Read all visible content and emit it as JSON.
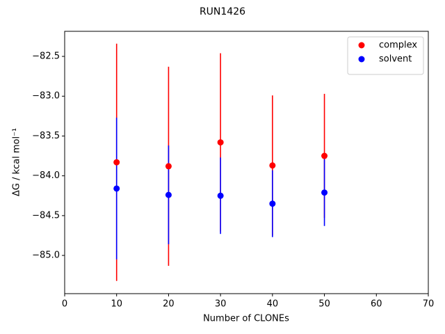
{
  "chart_data": {
    "type": "errorbar",
    "title": "RUN1426",
    "xlabel": "Number of CLONEs",
    "ylabel": "ΔG / kcal mol⁻¹",
    "xlim": [
      0,
      70
    ],
    "xticks": [
      0,
      10,
      20,
      30,
      40,
      50,
      60,
      70
    ],
    "ylim": [
      -85.48,
      -82.185
    ],
    "yticks": [
      {
        "value": -85.0,
        "label": "−85.0"
      },
      {
        "value": -84.5,
        "label": "−84.5"
      },
      {
        "value": -84.0,
        "label": "−84.0"
      },
      {
        "value": -83.5,
        "label": "−83.5"
      },
      {
        "value": -83.0,
        "label": "−83.0"
      },
      {
        "value": -82.5,
        "label": "−82.5"
      }
    ],
    "legend": "upper right",
    "series": [
      {
        "name": "complex",
        "color": "#ff0000",
        "x": [
          10,
          20,
          30,
          40,
          50
        ],
        "values": [
          -83.83,
          -83.88,
          -83.58,
          -83.87,
          -83.75
        ],
        "errors": [
          1.49,
          1.25,
          1.12,
          0.88,
          0.78
        ]
      },
      {
        "name": "solvent",
        "color": "#0000ff",
        "x": [
          10,
          20,
          30,
          40,
          50
        ],
        "values": [
          -84.16,
          -84.24,
          -84.25,
          -84.35,
          -84.21
        ],
        "errors": [
          0.89,
          0.62,
          0.48,
          0.42,
          0.42
        ]
      }
    ]
  }
}
